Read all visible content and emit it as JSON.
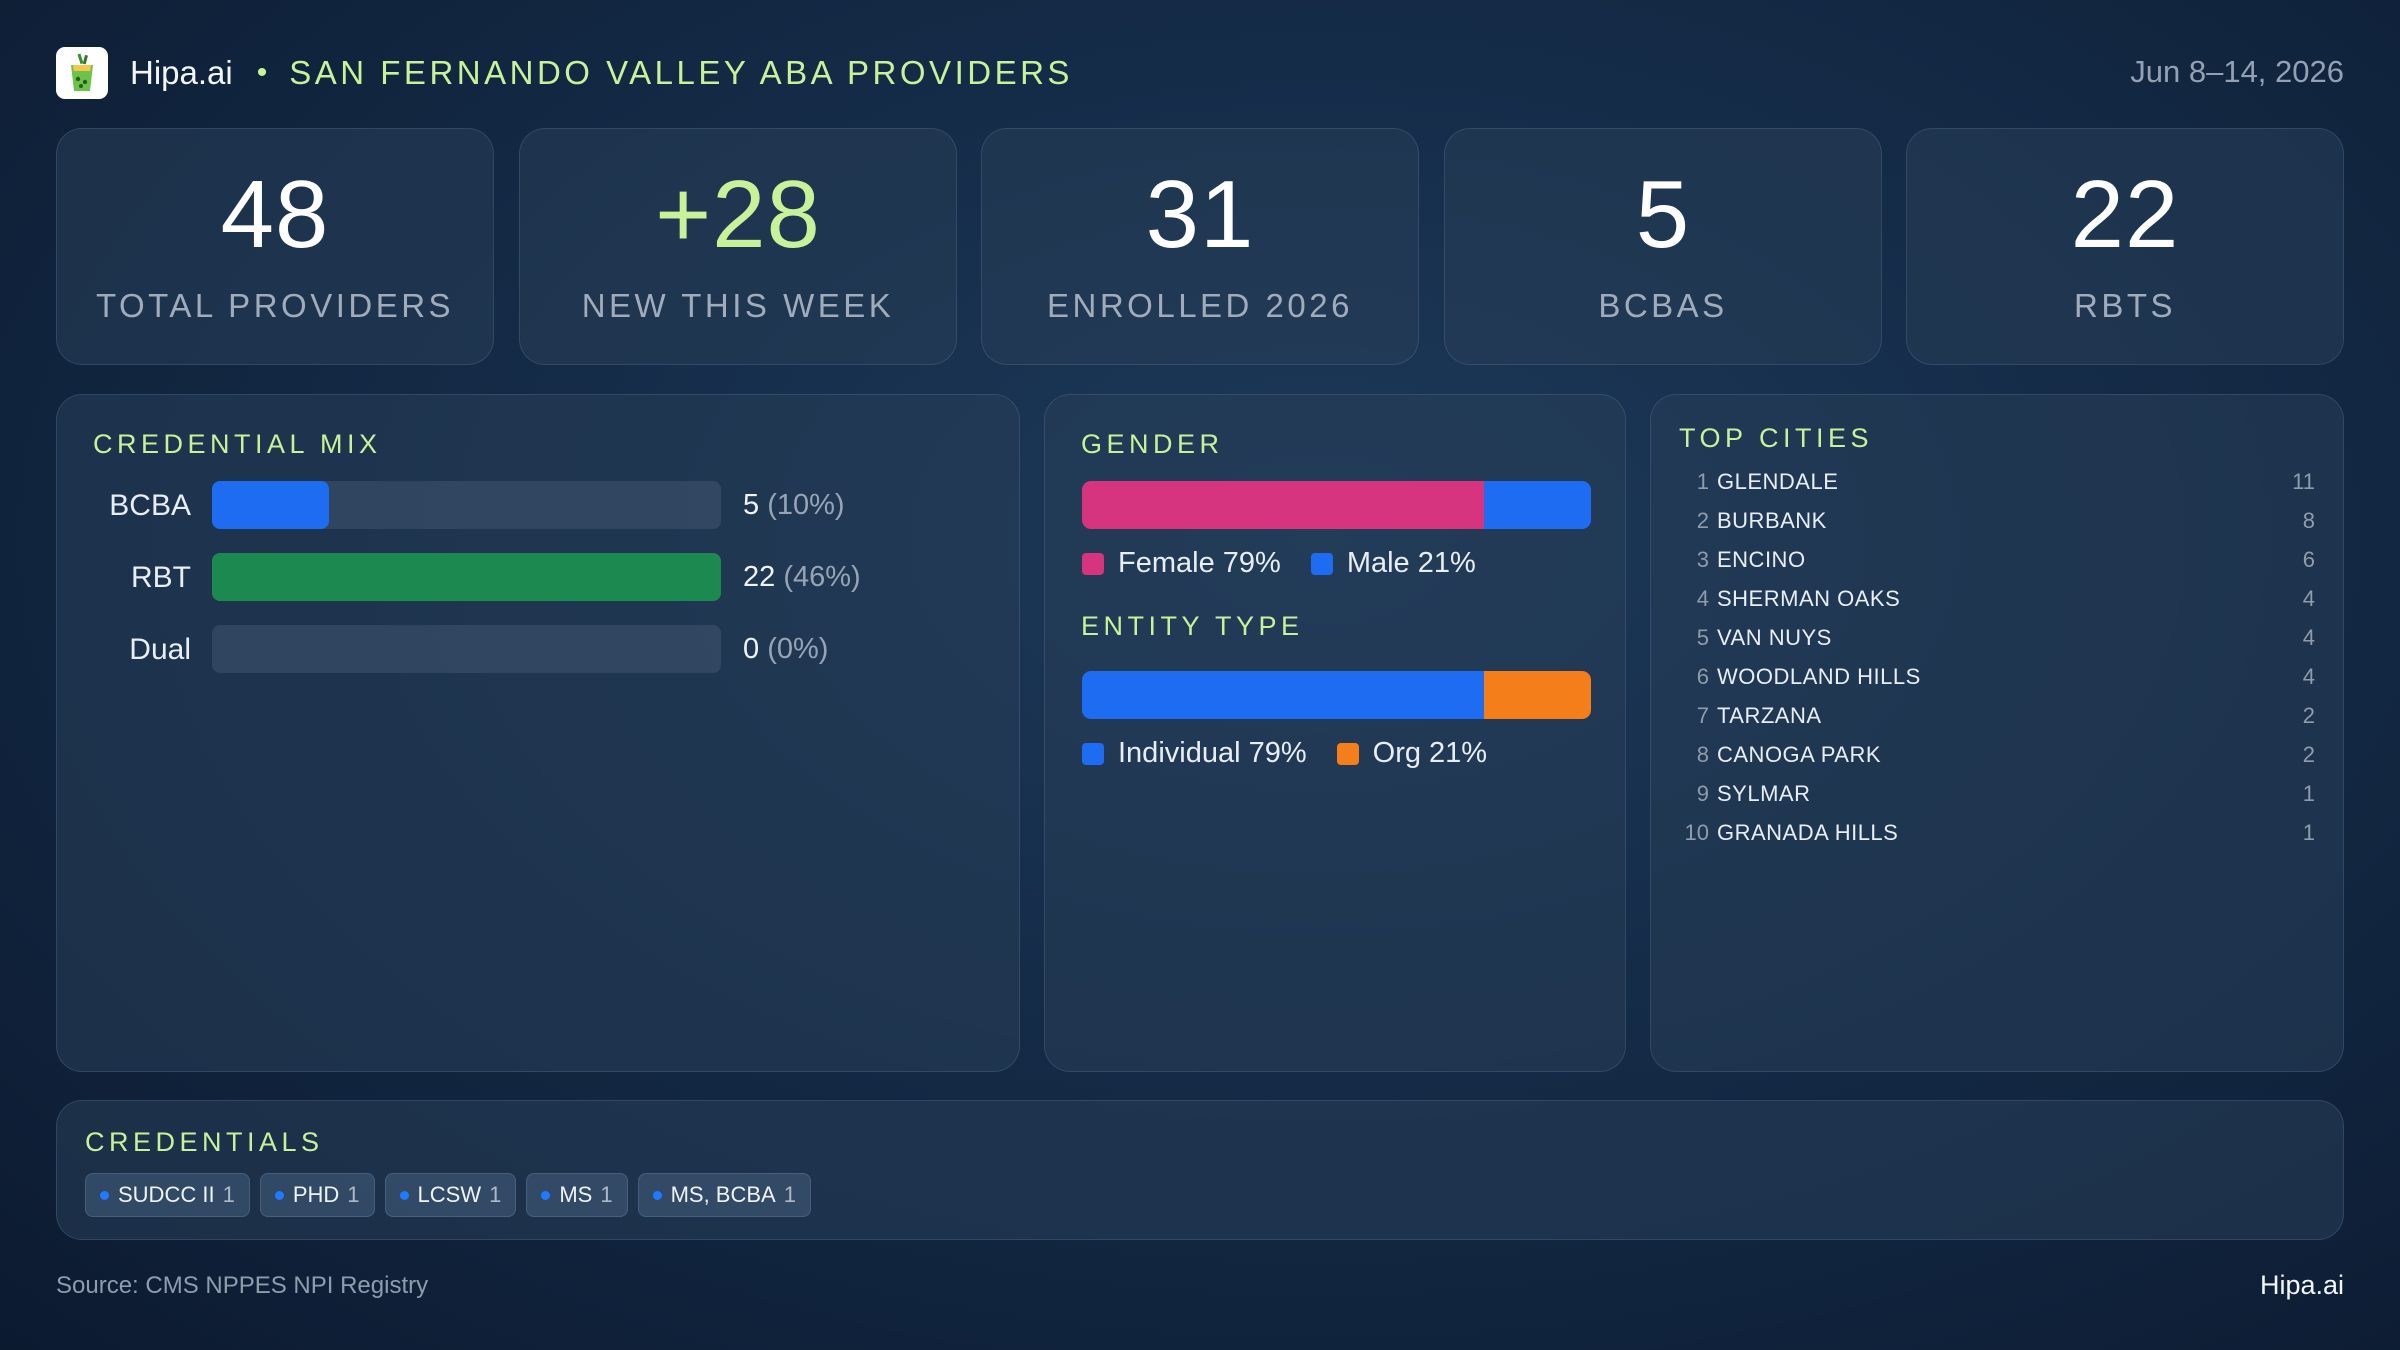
{
  "header": {
    "brand": "Hipa.ai",
    "separator": "•",
    "region": "SAN FERNANDO VALLEY ABA PROVIDERS",
    "date_range": "Jun 8–14, 2026",
    "logo_icon": "cup-icon"
  },
  "stats": [
    {
      "value": "48",
      "label": "TOTAL PROVIDERS"
    },
    {
      "value": "+28",
      "label": "NEW THIS WEEK"
    },
    {
      "value": "31",
      "label": "ENROLLED 2026"
    },
    {
      "value": "5",
      "label": "BCBAS"
    },
    {
      "value": "22",
      "label": "RBTS"
    }
  ],
  "credential_mix": {
    "title": "CREDENTIAL MIX",
    "rows": [
      {
        "name": "BCBA",
        "count": "5",
        "pct": "(10%)",
        "fraction": 0.23,
        "color": "#1e6cf2"
      },
      {
        "name": "RBT",
        "count": "22",
        "pct": "(46%)",
        "fraction": 1.0,
        "color": "#1c8a50"
      },
      {
        "name": "Dual",
        "count": "0",
        "pct": "(0%)",
        "fraction": 0.0,
        "color": "#1e6cf2"
      }
    ]
  },
  "gender": {
    "title": "GENDER",
    "segments": [
      {
        "label": "Female 79%",
        "fraction": 0.79,
        "color": "#d6347f"
      },
      {
        "label": "Male 21%",
        "fraction": 0.21,
        "color": "#1e6cf2"
      }
    ]
  },
  "entity_type": {
    "title": "ENTITY TYPE",
    "segments": [
      {
        "label": "Individual 79%",
        "fraction": 0.79,
        "color": "#1e6cf2"
      },
      {
        "label": "Org 21%",
        "fraction": 0.21,
        "color": "#f47e1a"
      }
    ]
  },
  "top_cities": {
    "title": "TOP CITIES",
    "rows": [
      {
        "rank": "1",
        "name": "GLENDALE",
        "count": "11"
      },
      {
        "rank": "2",
        "name": "BURBANK",
        "count": "8"
      },
      {
        "rank": "3",
        "name": "ENCINO",
        "count": "6"
      },
      {
        "rank": "4",
        "name": "SHERMAN OAKS",
        "count": "4"
      },
      {
        "rank": "5",
        "name": "VAN NUYS",
        "count": "4"
      },
      {
        "rank": "6",
        "name": "WOODLAND HILLS",
        "count": "4"
      },
      {
        "rank": "7",
        "name": "TARZANA",
        "count": "2"
      },
      {
        "rank": "8",
        "name": "CANOGA PARK",
        "count": "2"
      },
      {
        "rank": "9",
        "name": "SYLMAR",
        "count": "1"
      },
      {
        "rank": "10",
        "name": "GRANADA HILLS",
        "count": "1"
      }
    ]
  },
  "credentials": {
    "title": "CREDENTIALS",
    "chips": [
      {
        "label": "SUDCC II",
        "count": "1"
      },
      {
        "label": "PHD",
        "count": "1"
      },
      {
        "label": "LCSW",
        "count": "1"
      },
      {
        "label": "MS",
        "count": "1"
      },
      {
        "label": "MS, BCBA",
        "count": "1"
      }
    ]
  },
  "footer": {
    "source": "Source: CMS NPPES NPI Registry",
    "brand": "Hipa.ai"
  }
}
